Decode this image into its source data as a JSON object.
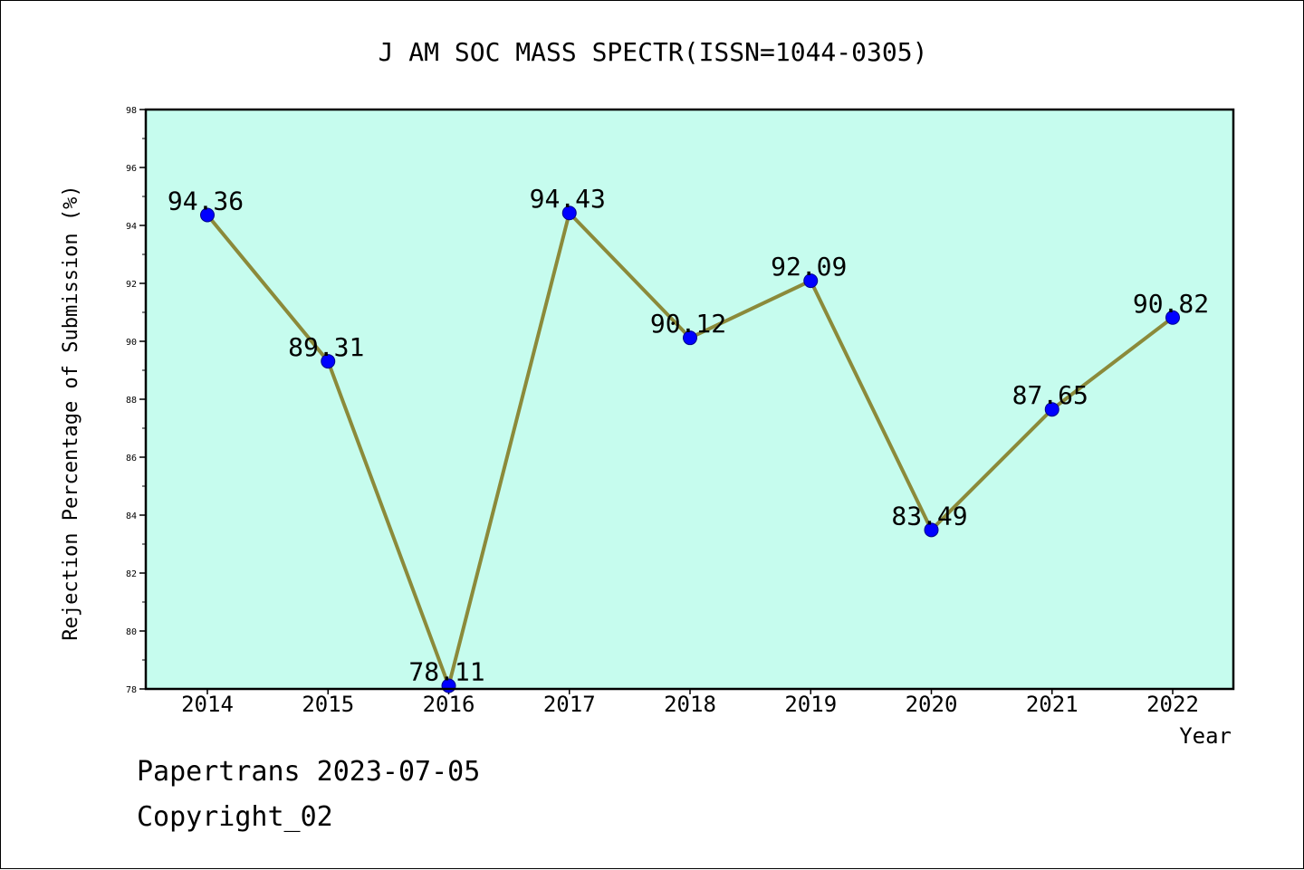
{
  "chart_data": {
    "type": "line",
    "title": "J AM SOC MASS SPECTR(ISSN=1044-0305)",
    "xlabel": "Year",
    "ylabel": "Rejection Percentage of Submission (%)",
    "categories": [
      "2014",
      "2015",
      "2016",
      "2017",
      "2018",
      "2019",
      "2020",
      "2021",
      "2022"
    ],
    "values": [
      94.36,
      89.31,
      78.11,
      94.43,
      90.12,
      92.09,
      83.49,
      87.65,
      90.82
    ],
    "data_labels": [
      "94.36",
      "89.31",
      "78.11",
      "94.43",
      "90.12",
      "92.09",
      "83.49",
      "87.65",
      "90.82"
    ],
    "ylim": [
      78,
      98
    ],
    "yticks": [
      78,
      80,
      82,
      84,
      86,
      88,
      90,
      92,
      94,
      96,
      98
    ],
    "grid": false,
    "colors": {
      "plot_background": "#c6fcee",
      "line": "#8b8a3a",
      "marker": "#0000ff",
      "marker_edge": "#00008b"
    }
  },
  "footer": {
    "line1": "Papertrans 2023-07-05",
    "line2": "Copyright_02"
  }
}
